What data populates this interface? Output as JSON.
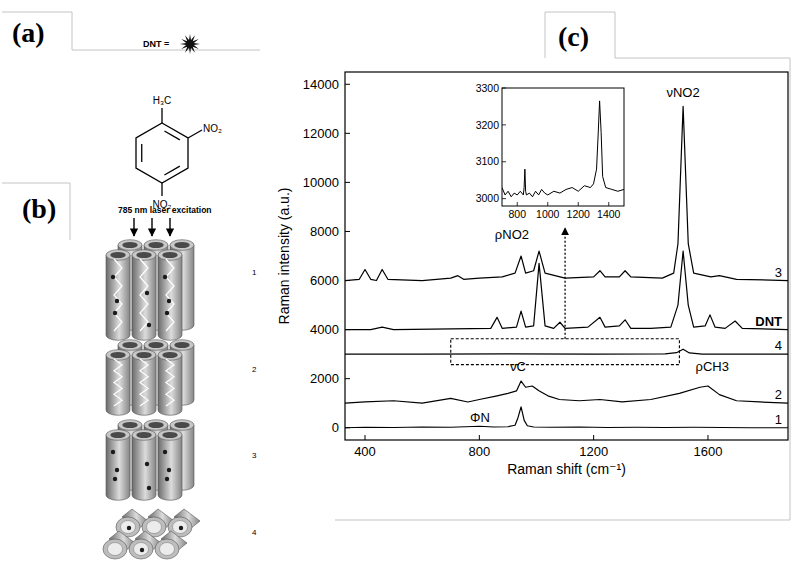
{
  "figure": {
    "panel_labels": [
      "(a)",
      "(b)",
      "(c)"
    ],
    "molecule": {
      "label": "DNT =",
      "substituents": [
        "H₃C",
        "NO₂",
        "NO₂"
      ]
    },
    "diagram": {
      "excitation": "785 nm laser excitation",
      "samples": [
        "1",
        "2",
        "3",
        "4"
      ]
    }
  },
  "chart_data": {
    "type": "line",
    "x_label": "Raman shift (cm⁻¹)",
    "y_label": "Raman intensity (a.u.)",
    "xlim": [
      330,
      1880
    ],
    "ylim": [
      -500,
      14500
    ],
    "xticks": [
      400,
      800,
      1200,
      1600
    ],
    "yticks": [
      0,
      2000,
      4000,
      6000,
      8000,
      10000,
      12000,
      14000
    ],
    "series": [
      {
        "name": "1",
        "color": "#000000",
        "x": [
          330,
          400,
          500,
          600,
          700,
          802,
          850,
          900,
          925,
          935,
          946,
          957,
          968,
          990,
          1050,
          1150,
          1250,
          1350,
          1450,
          1550,
          1650,
          1750,
          1880
        ],
        "values": [
          0,
          20,
          10,
          30,
          20,
          60,
          30,
          40,
          100,
          400,
          850,
          300,
          80,
          30,
          20,
          30,
          10,
          20,
          10,
          20,
          10,
          0,
          0
        ]
      },
      {
        "name": "2",
        "color": "#000000",
        "x": [
          330,
          400,
          500,
          600,
          700,
          760,
          800,
          862,
          900,
          930,
          946,
          962,
          985,
          1010,
          1040,
          1080,
          1150,
          1222,
          1300,
          1400,
          1500,
          1572,
          1600,
          1640,
          1700,
          1780,
          1880
        ],
        "values": [
          1000,
          1050,
          1100,
          1000,
          1200,
          1050,
          1150,
          1300,
          1400,
          1500,
          1900,
          1650,
          1700,
          1500,
          1300,
          1150,
          1100,
          1150,
          1050,
          1150,
          1400,
          1650,
          1700,
          1350,
          1100,
          1050,
          1000
        ]
      },
      {
        "name": "4",
        "color": "#000000",
        "x": [
          330,
          600,
          900,
          1200,
          1450,
          1490,
          1513,
          1535,
          1580,
          1880
        ],
        "values": [
          3000,
          3000,
          3010,
          3000,
          3010,
          3060,
          3200,
          3050,
          3000,
          3000
        ]
      },
      {
        "name": "DNT",
        "color": "#000000",
        "x": [
          330,
          420,
          460,
          480,
          500,
          840,
          862,
          880,
          930,
          946,
          962,
          990,
          1009,
          1030,
          1060,
          1082,
          1100,
          1180,
          1222,
          1240,
          1290,
          1310,
          1330,
          1400,
          1470,
          1495,
          1513,
          1531,
          1550,
          1590,
          1607,
          1625,
          1660,
          1695,
          1720,
          1880
        ],
        "values": [
          4000,
          4000,
          4100,
          4050,
          4000,
          4050,
          4500,
          4050,
          4100,
          4750,
          4100,
          4150,
          6700,
          4150,
          4050,
          4300,
          4050,
          4100,
          4500,
          4100,
          4150,
          4400,
          4050,
          4050,
          4100,
          5000,
          7200,
          5000,
          4100,
          4150,
          4600,
          4100,
          4050,
          4350,
          4050,
          4000
        ]
      },
      {
        "name": "3",
        "color": "#000000",
        "x": [
          330,
          380,
          400,
          420,
          440,
          460,
          480,
          600,
          700,
          725,
          745,
          800,
          880,
          925,
          946,
          962,
          990,
          1009,
          1030,
          1100,
          1200,
          1222,
          1240,
          1290,
          1310,
          1330,
          1440,
          1480,
          1495,
          1513,
          1531,
          1550,
          1610,
          1640,
          1700,
          1880
        ],
        "values": [
          6000,
          6050,
          6450,
          6050,
          6000,
          6450,
          6050,
          6000,
          6100,
          6200,
          6050,
          6100,
          6150,
          6300,
          7000,
          6300,
          6400,
          7200,
          6300,
          6100,
          6150,
          6400,
          6150,
          6150,
          6400,
          6150,
          6100,
          6300,
          7500,
          13100,
          7500,
          6300,
          6150,
          6200,
          6050,
          6000
        ]
      }
    ],
    "annotations": [
      {
        "text": "νNO2",
        "x": 1513,
        "y": 13500
      },
      {
        "text": "ρNO2",
        "x": 914,
        "y": 7700
      },
      {
        "text": "νC",
        "x": 935,
        "y": 2300
      },
      {
        "text": "ρCH3",
        "x": 1615,
        "y": 2300
      },
      {
        "text": "ΦN",
        "x": 802,
        "y": 250
      }
    ],
    "inset": {
      "xlim": [
        700,
        1500
      ],
      "ylim": [
        2980,
        3300
      ],
      "xticks": [
        800,
        1000,
        1200,
        1400
      ],
      "yticks": [
        3000,
        3100,
        3200,
        3300
      ],
      "x": [
        700,
        720,
        740,
        760,
        780,
        800,
        820,
        840,
        845,
        850,
        855,
        860,
        880,
        900,
        920,
        940,
        960,
        980,
        1000,
        1040,
        1080,
        1120,
        1160,
        1200,
        1240,
        1280,
        1300,
        1320,
        1330,
        1340,
        1350,
        1360,
        1380,
        1420,
        1460,
        1500
      ],
      "values": [
        3030,
        3010,
        3020,
        3005,
        3015,
        3010,
        3020,
        3010,
        3030,
        3080,
        3020,
        3010,
        3015,
        3005,
        3020,
        3010,
        3025,
        3015,
        3010,
        3020,
        3015,
        3025,
        3030,
        3020,
        3035,
        3030,
        3040,
        3080,
        3170,
        3265,
        3180,
        3060,
        3030,
        3025,
        3020,
        3025
      ]
    }
  }
}
